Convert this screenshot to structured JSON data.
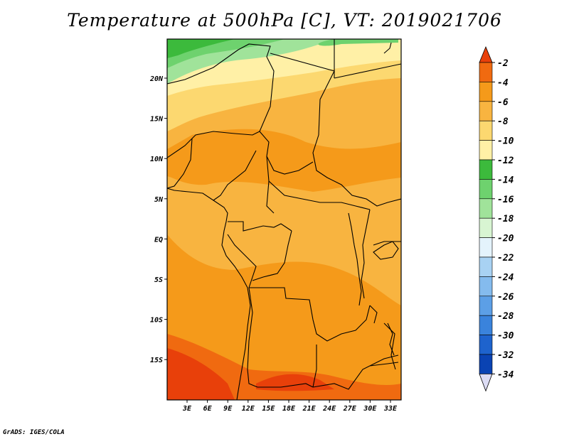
{
  "title": "Temperature at 500hPa [C], VT: 2019021706",
  "footer": "GrADS: IGES/COLA",
  "map": {
    "region": "Central Africa",
    "lat_range": [
      -20,
      24
    ],
    "lon_range": [
      0,
      35
    ],
    "lat_labels": [
      "20N",
      "15N",
      "10N",
      "5N",
      "EQ",
      "5S",
      "10S",
      "15S"
    ],
    "lon_labels": [
      "3E",
      "6E",
      "9E",
      "12E",
      "15E",
      "18E",
      "21E",
      "24E",
      "27E",
      "30E",
      "33E"
    ],
    "field_description": "temperature bands warming from about -12 in the far north to about -4 in the south"
  },
  "colorbar": {
    "labels": [
      "-2",
      "-4",
      "-6",
      "-8",
      "-10",
      "-12",
      "-14",
      "-16",
      "-18",
      "-20",
      "-22",
      "-24",
      "-26",
      "-28",
      "-30",
      "-32",
      "-34"
    ],
    "colors": [
      "#e8400a",
      "#f06a10",
      "#f59a1a",
      "#f8b440",
      "#fcd870",
      "#fff0a6",
      "#3cba3c",
      "#6ed26e",
      "#a0e39a",
      "#d8f5d2",
      "#e4f3fc",
      "#a8d2f3",
      "#84bbee",
      "#5c9fe6",
      "#3a83dc",
      "#1e63cd",
      "#0a43b3",
      "#14147a"
    ],
    "top_arrow_color": "#e8400a",
    "bottom_arrow_color": "#dcdcf4"
  }
}
